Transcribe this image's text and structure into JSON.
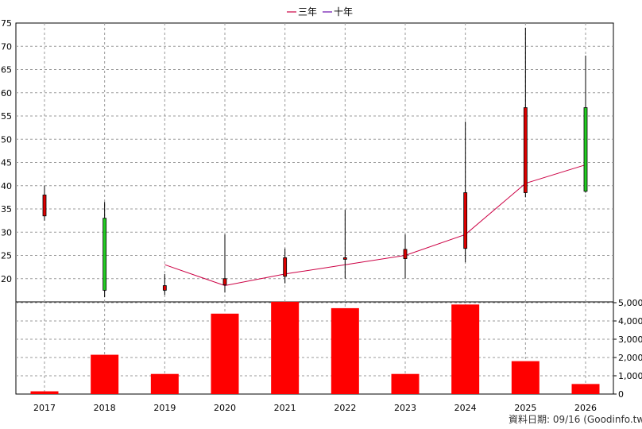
{
  "chart_data": {
    "type": "candlestick+bar",
    "legend": [
      {
        "label": "三年",
        "color": "#cc0044"
      },
      {
        "label": "十年",
        "color": "#6a0dad"
      }
    ],
    "categories": [
      "2017",
      "2018",
      "2019",
      "2020",
      "2021",
      "2022",
      "2023",
      "2024",
      "2025",
      "2026"
    ],
    "price": {
      "ylim": [
        15,
        75
      ],
      "yticks": [
        20,
        25,
        30,
        35,
        40,
        45,
        50,
        55,
        60,
        65,
        70,
        75
      ],
      "candles": [
        {
          "open": 33.5,
          "close": 38.0,
          "high": 40.0,
          "low": 32.5
        },
        {
          "open": 33.0,
          "close": 17.5,
          "high": 36.5,
          "low": 16.0
        },
        {
          "open": 17.5,
          "close": 18.5,
          "high": 21.0,
          "low": 16.5
        },
        {
          "open": 18.7,
          "close": 20.0,
          "high": 29.5,
          "low": 17.0
        },
        {
          "open": 20.5,
          "close": 24.5,
          "high": 26.5,
          "low": 19.0
        },
        {
          "open": 24.3,
          "close": 24.5,
          "high": 34.8,
          "low": 20.0
        },
        {
          "open": 24.3,
          "close": 26.3,
          "high": 29.5,
          "low": 20.0
        },
        {
          "open": 26.5,
          "close": 38.5,
          "high": 53.8,
          "low": 23.5
        },
        {
          "open": 38.5,
          "close": 56.8,
          "high": 74.0,
          "low": 37.5
        },
        {
          "open": 56.8,
          "close": 38.8,
          "high": 68.0,
          "low": 38.5
        }
      ],
      "three_year_avg": [
        null,
        null,
        23.0,
        18.5,
        21.0,
        23.0,
        25.0,
        29.5,
        40.5,
        44.5
      ]
    },
    "volume": {
      "ylim": [
        0,
        5000
      ],
      "yticks": [
        "0",
        "1,000",
        "2,000",
        "3,000",
        "4,000",
        "5,000"
      ],
      "ytick_values": [
        0,
        1000,
        2000,
        3000,
        4000,
        5000
      ],
      "values": [
        150,
        2150,
        1100,
        4400,
        5050,
        4700,
        1100,
        4900,
        1800,
        550
      ],
      "color": "#ff0000"
    },
    "grid": true
  },
  "source_label": "資料日期: 09/16  (Goodinfo.tw)"
}
